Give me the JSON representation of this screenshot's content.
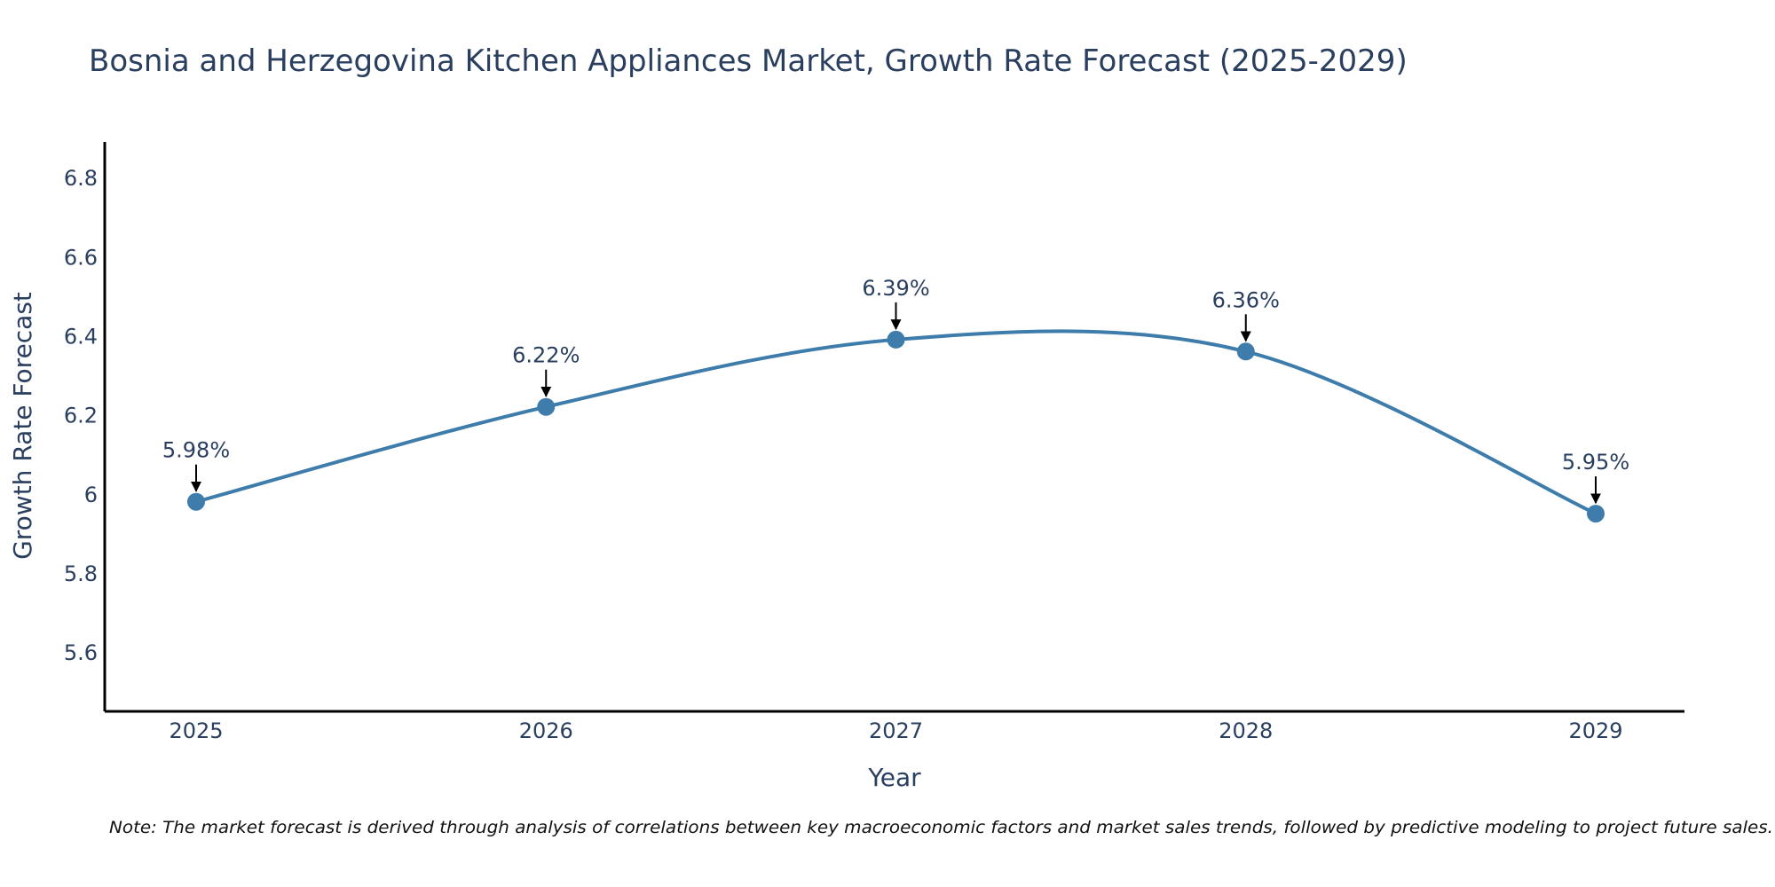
{
  "chart_data": {
    "type": "line",
    "title": "Bosnia and Herzegovina Kitchen Appliances Market, Growth Rate Forecast (2025-2029)",
    "xlabel": "Year",
    "ylabel": "Growth Rate Forecast",
    "categories": [
      "2025",
      "2026",
      "2027",
      "2028",
      "2029"
    ],
    "values": [
      5.98,
      6.22,
      6.39,
      6.36,
      5.95
    ],
    "data_labels": [
      "5.98%",
      "6.22%",
      "6.39%",
      "6.36%",
      "5.95%"
    ],
    "y_ticks": [
      5.6,
      5.8,
      6,
      6.2,
      6.4,
      6.6,
      6.8
    ],
    "y_tick_labels": [
      "5.6",
      "5.8",
      "6",
      "6.2",
      "6.4",
      "6.6",
      "6.8"
    ],
    "ylim": [
      5.45,
      6.89
    ],
    "line_shape": "spline",
    "grid": false,
    "series_color": "#3d7cab",
    "arrow_color": "#000000",
    "note": "Note: The market forecast is derived through analysis of correlations between key macroeconomic factors and market sales trends, followed by predictive modeling to project future sales."
  }
}
